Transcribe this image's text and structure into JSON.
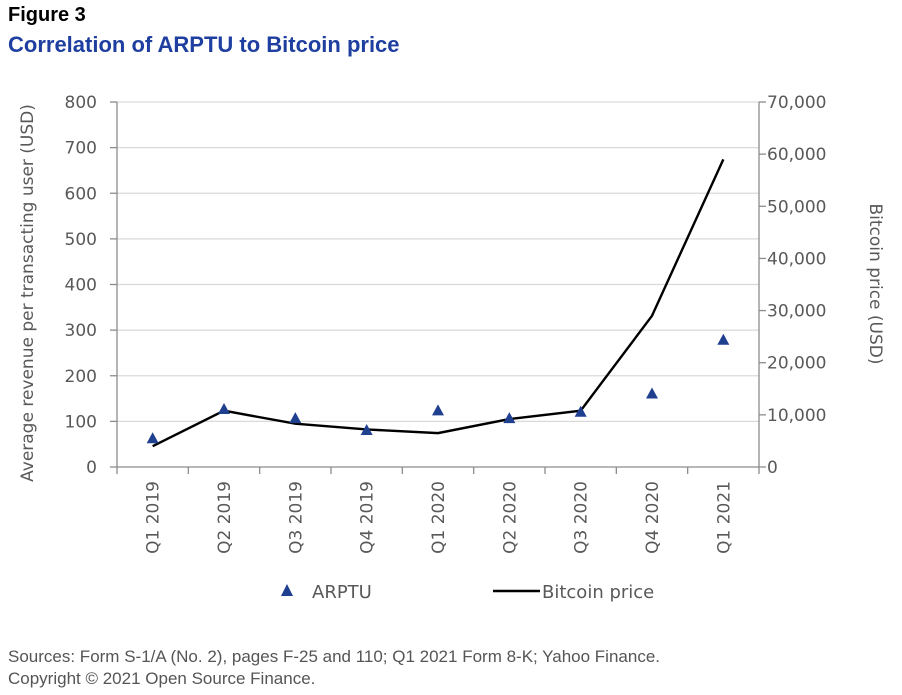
{
  "figure_label": "Figure 3",
  "figure_title": "Correlation of ARPTU to Bitcoin price",
  "source_line1": "Sources: Form S-1/A (No. 2), pages F-25 and 110; Q1 2021 Form 8-K; Yahoo Finance.",
  "source_line2": "Copyright © 2021 Open Source Finance.",
  "colors": {
    "arptu": "#1f3f8f",
    "bitcoin": "#000000",
    "grid": "#d9d9d9",
    "axis": "#8c8c8c",
    "text": "#595959",
    "title": "#1f3fa0"
  },
  "chart_data": {
    "type": "line",
    "title": "Correlation of ARPTU to Bitcoin price",
    "categories": [
      "Q1 2019",
      "Q2 2019",
      "Q3 2019",
      "Q4 2019",
      "Q1 2020",
      "Q2 2020",
      "Q3 2020",
      "Q4 2020",
      "Q1 2021"
    ],
    "ylabel_left": "Average revenue per transacting user (USD)",
    "ylabel_right": "Bitcoin price (USD)",
    "ylim_left": [
      0,
      800
    ],
    "ylim_right": [
      0,
      70000
    ],
    "yticks_left": [
      0,
      100,
      200,
      300,
      400,
      500,
      600,
      700,
      800
    ],
    "yticks_left_labels": [
      "0",
      "100",
      "200",
      "300",
      "400",
      "500",
      "600",
      "700",
      "800"
    ],
    "yticks_right": [
      0,
      10000,
      20000,
      30000,
      40000,
      50000,
      60000,
      70000
    ],
    "yticks_right_labels": [
      "0",
      "10,000",
      "20,000",
      "30,000",
      "40,000",
      "50,000",
      "60,000",
      "70,000"
    ],
    "grid": true,
    "legend_position": "bottom",
    "series": [
      {
        "name": "ARPTU",
        "axis": "left",
        "style": "triangle-markers",
        "values": [
          63,
          127,
          107,
          81,
          124,
          107,
          121,
          161,
          279
        ]
      },
      {
        "name": "Bitcoin price",
        "axis": "right",
        "style": "line",
        "values": [
          4000,
          10800,
          8300,
          7200,
          6500,
          9200,
          10800,
          29000,
          59000
        ]
      }
    ]
  }
}
